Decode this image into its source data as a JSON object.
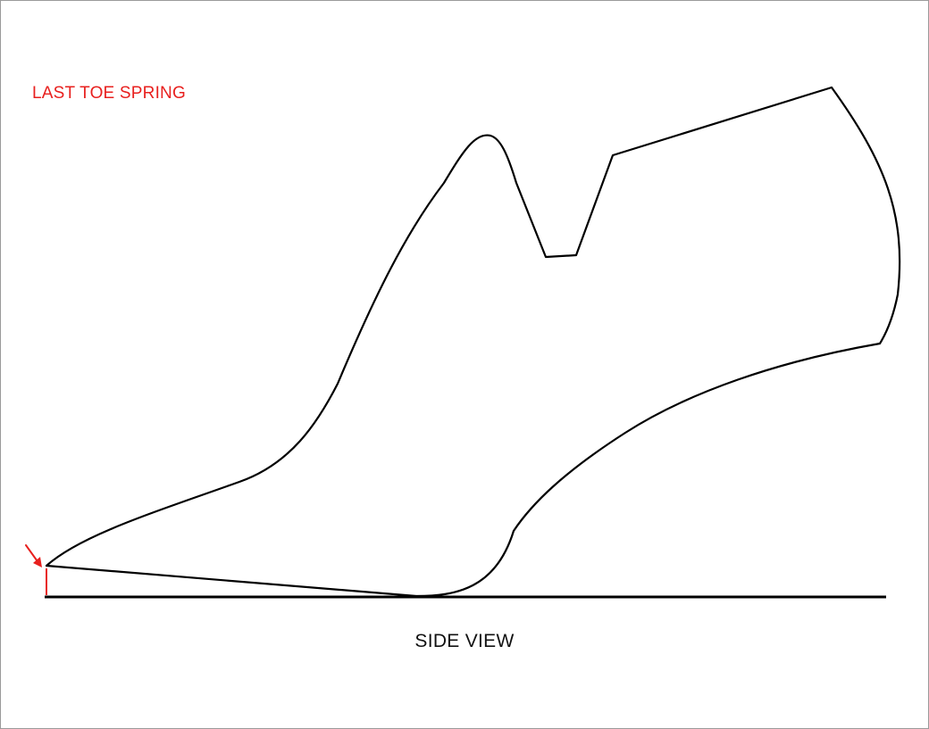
{
  "figure": {
    "title": "LAST TOE SPRING",
    "caption": "SIDE VIEW"
  },
  "colors": {
    "outline": "#000000",
    "annotation": "#e8201e",
    "caption": "#111111",
    "frame_border": "#9a9a9a"
  },
  "icons": {
    "arrow": "red-arrow-icon"
  }
}
